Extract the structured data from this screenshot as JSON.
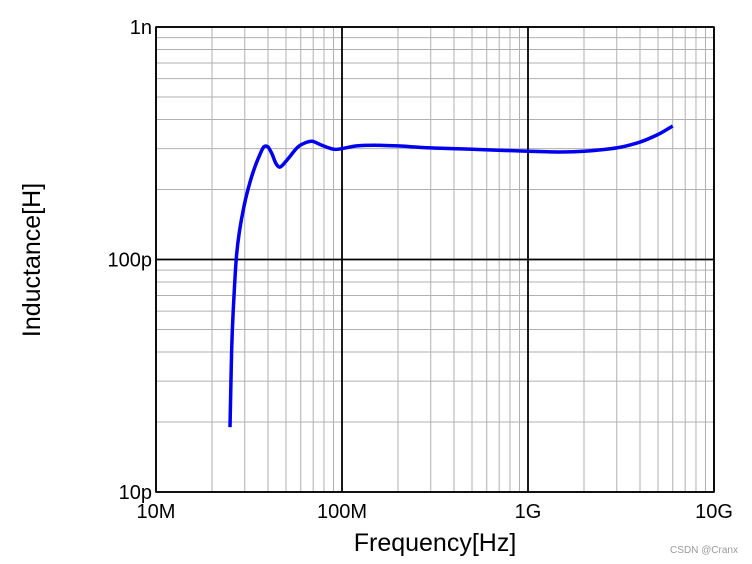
{
  "chart_data": {
    "type": "line",
    "xlabel": "Frequency[Hz]",
    "ylabel": "Inductance[H]",
    "x_scale": "log",
    "y_scale": "log",
    "xlim": [
      10000000,
      10000000000
    ],
    "ylim": [
      1e-11,
      1e-09
    ],
    "x_ticks": [
      {
        "value": 10000000,
        "label": "10M"
      },
      {
        "value": 100000000,
        "label": "100M"
      },
      {
        "value": 1000000000,
        "label": "1G"
      },
      {
        "value": 10000000000,
        "label": "10G"
      }
    ],
    "y_ticks": [
      {
        "value": 1e-09,
        "label": "1n"
      },
      {
        "value": 1e-10,
        "label": "100p"
      },
      {
        "value": 1e-11,
        "label": "10p"
      }
    ],
    "grid": true,
    "series": [
      {
        "color": "#0000ee",
        "points": [
          {
            "x": 25000000,
            "y": 1.9e-11
          },
          {
            "x": 25500000,
            "y": 4e-11
          },
          {
            "x": 26000000,
            "y": 6e-11
          },
          {
            "x": 27000000,
            "y": 1e-10
          },
          {
            "x": 28000000,
            "y": 1.3e-10
          },
          {
            "x": 30000000,
            "y": 1.75e-10
          },
          {
            "x": 32000000,
            "y": 2.15e-10
          },
          {
            "x": 34000000,
            "y": 2.5e-10
          },
          {
            "x": 36000000,
            "y": 2.8e-10
          },
          {
            "x": 38000000,
            "y": 3.05e-10
          },
          {
            "x": 40000000,
            "y": 3.05e-10
          },
          {
            "x": 42000000,
            "y": 2.85e-10
          },
          {
            "x": 44000000,
            "y": 2.6e-10
          },
          {
            "x": 46000000,
            "y": 2.5e-10
          },
          {
            "x": 48000000,
            "y": 2.55e-10
          },
          {
            "x": 52000000,
            "y": 2.75e-10
          },
          {
            "x": 58000000,
            "y": 3.05e-10
          },
          {
            "x": 65000000,
            "y": 3.2e-10
          },
          {
            "x": 70000000,
            "y": 3.22e-10
          },
          {
            "x": 78000000,
            "y": 3.1e-10
          },
          {
            "x": 90000000,
            "y": 2.98e-10
          },
          {
            "x": 100000000,
            "y": 3e-10
          },
          {
            "x": 120000000,
            "y": 3.08e-10
          },
          {
            "x": 150000000,
            "y": 3.1e-10
          },
          {
            "x": 200000000,
            "y": 3.08e-10
          },
          {
            "x": 300000000,
            "y": 3.02e-10
          },
          {
            "x": 500000000,
            "y": 2.98e-10
          },
          {
            "x": 1000000000,
            "y": 2.92e-10
          },
          {
            "x": 1500000000,
            "y": 2.9e-10
          },
          {
            "x": 2000000000,
            "y": 2.92e-10
          },
          {
            "x": 3000000000,
            "y": 3.02e-10
          },
          {
            "x": 4000000000,
            "y": 3.2e-10
          },
          {
            "x": 5000000000,
            "y": 3.45e-10
          },
          {
            "x": 6000000000,
            "y": 3.75e-10
          }
        ]
      }
    ]
  },
  "watermark": "CSDN @Cranx"
}
